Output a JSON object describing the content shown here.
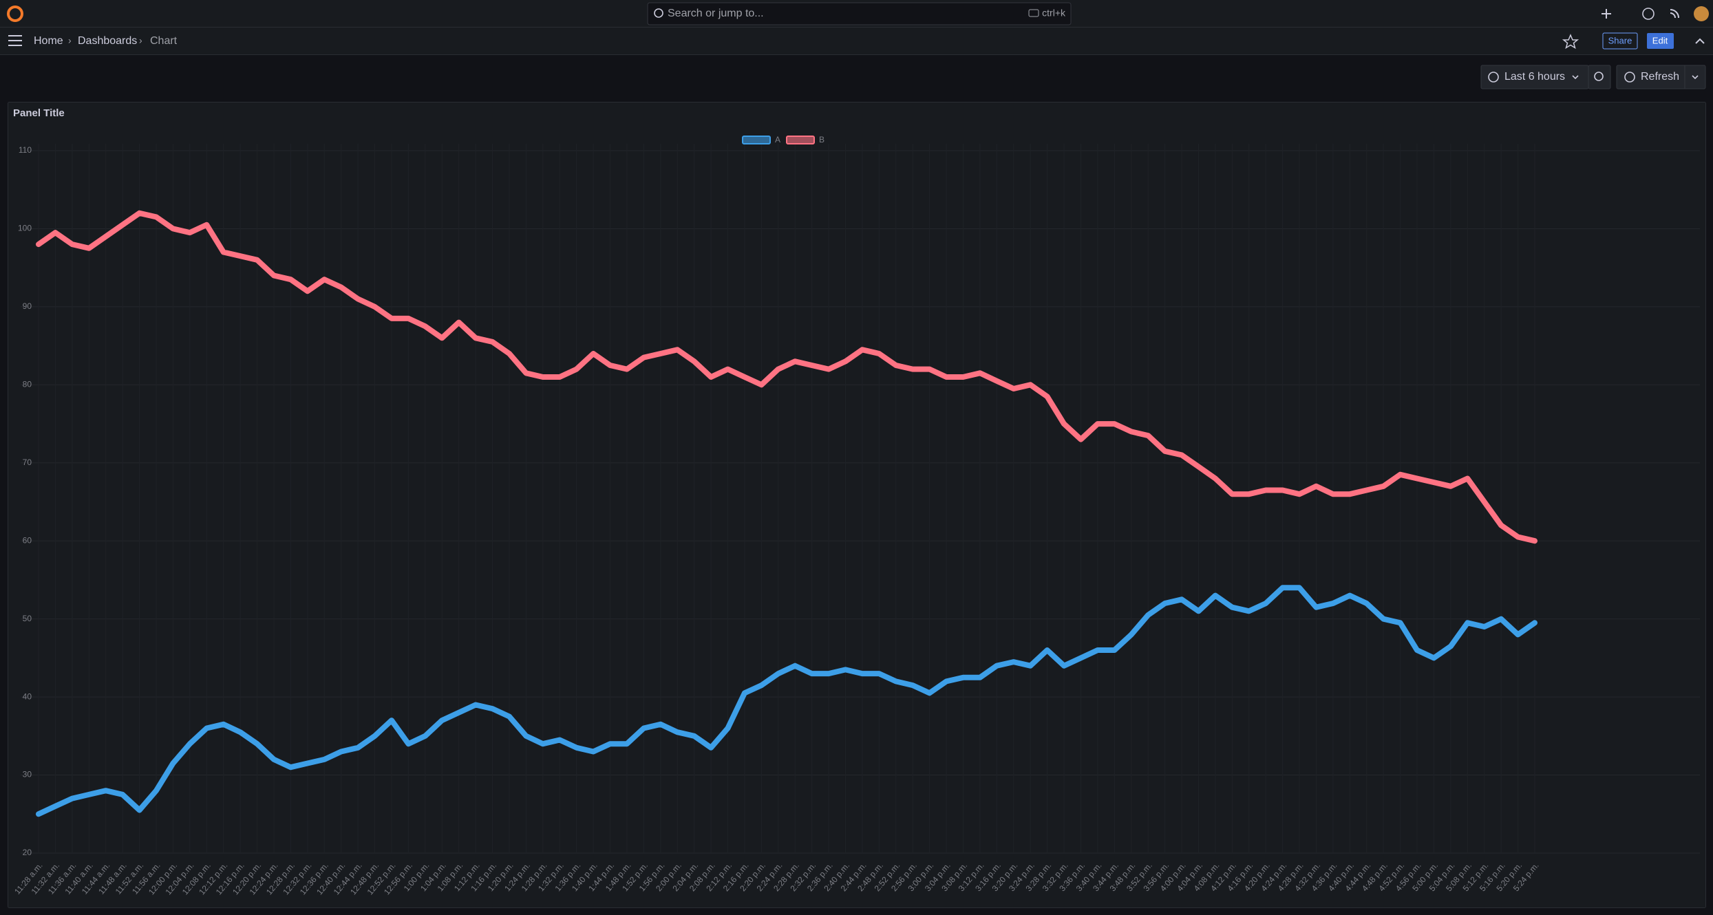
{
  "top_bar": {
    "search_placeholder": "Search or jump to...",
    "shortcut": "ctrl+k"
  },
  "breadcrumbs": [
    "Home",
    "Dashboards",
    "Chart"
  ],
  "actions": {
    "share": "Share",
    "edit": "Edit"
  },
  "toolbar": {
    "time_range": "Last 6 hours",
    "refresh": "Refresh"
  },
  "chart_data": {
    "type": "line",
    "title": "Panel Title",
    "x": [
      "11:28 a.m.",
      "11:32 a.m.",
      "11:36 a.m.",
      "11:40 a.m.",
      "11:44 a.m.",
      "11:48 a.m.",
      "11:52 a.m.",
      "11:56 a.m.",
      "12:00 p.m.",
      "12:04 p.m.",
      "12:08 p.m.",
      "12:12 p.m.",
      "12:16 p.m.",
      "12:20 p.m.",
      "12:24 p.m.",
      "12:28 p.m.",
      "12:32 p.m.",
      "12:36 p.m.",
      "12:40 p.m.",
      "12:44 p.m.",
      "12:48 p.m.",
      "12:52 p.m.",
      "12:56 p.m.",
      "1:00 p.m.",
      "1:04 p.m.",
      "1:08 p.m.",
      "1:12 p.m.",
      "1:16 p.m.",
      "1:20 p.m.",
      "1:24 p.m.",
      "1:28 p.m.",
      "1:32 p.m.",
      "1:36 p.m.",
      "1:40 p.m.",
      "1:44 p.m.",
      "1:48 p.m.",
      "1:52 p.m.",
      "1:56 p.m.",
      "2:00 p.m.",
      "2:04 p.m.",
      "2:08 p.m.",
      "2:12 p.m.",
      "2:16 p.m.",
      "2:20 p.m.",
      "2:24 p.m.",
      "2:28 p.m.",
      "2:32 p.m.",
      "2:36 p.m.",
      "2:40 p.m.",
      "2:44 p.m.",
      "2:48 p.m.",
      "2:52 p.m.",
      "2:56 p.m.",
      "3:00 p.m.",
      "3:04 p.m.",
      "3:08 p.m.",
      "3:12 p.m.",
      "3:16 p.m.",
      "3:20 p.m.",
      "3:24 p.m.",
      "3:28 p.m.",
      "3:32 p.m.",
      "3:36 p.m.",
      "3:40 p.m.",
      "3:44 p.m.",
      "3:48 p.m.",
      "3:52 p.m.",
      "3:56 p.m.",
      "4:00 p.m.",
      "4:04 p.m.",
      "4:08 p.m.",
      "4:12 p.m.",
      "4:16 p.m.",
      "4:20 p.m.",
      "4:24 p.m.",
      "4:28 p.m.",
      "4:32 p.m.",
      "4:36 p.m.",
      "4:40 p.m.",
      "4:44 p.m.",
      "4:48 p.m.",
      "4:52 p.m.",
      "4:56 p.m.",
      "5:00 p.m.",
      "5:04 p.m.",
      "5:08 p.m.",
      "5:12 p.m.",
      "5:16 p.m.",
      "5:20 p.m.",
      "5:24 p.m."
    ],
    "series": [
      {
        "name": "A",
        "color": "#3d9fe8",
        "values": [
          25,
          26,
          27,
          27.5,
          28,
          27.5,
          25.5,
          28,
          31.5,
          34,
          36,
          36.5,
          35.5,
          34,
          32,
          31,
          31.5,
          32,
          33,
          33.5,
          35,
          37,
          34,
          35,
          37,
          38,
          39,
          38.5,
          37.5,
          35,
          34,
          34.5,
          33.5,
          33,
          34,
          34,
          36,
          36.5,
          35.5,
          35,
          33.5,
          36,
          40.5,
          41.5,
          43,
          44,
          43,
          43,
          43.5,
          43,
          43,
          42,
          41.5,
          40.5,
          42,
          42.5,
          42.5,
          44,
          44.5,
          44,
          46,
          44,
          45,
          46,
          46,
          48,
          50.5,
          52,
          52.5,
          51,
          53,
          51.5,
          51,
          52,
          54,
          54,
          51.5,
          52,
          53,
          52,
          50,
          49.5,
          46,
          45,
          46.5,
          49.5,
          49,
          50,
          48,
          49.5
        ]
      },
      {
        "name": "B",
        "color": "#ff7383",
        "values": [
          98,
          99.5,
          98,
          97.5,
          99,
          100.5,
          102,
          101.5,
          100,
          99.5,
          100.5,
          97,
          96.5,
          96,
          94,
          93.5,
          92,
          93.5,
          92.5,
          91,
          90,
          88.5,
          88.5,
          87.5,
          86,
          88,
          86,
          85.5,
          84,
          81.5,
          81,
          81,
          82,
          84,
          82.5,
          82,
          83.5,
          84,
          84.5,
          83,
          81,
          82,
          81,
          80,
          82,
          83,
          82.5,
          82,
          83,
          84.5,
          84,
          82.5,
          82,
          82,
          81,
          81,
          81.5,
          80.5,
          79.5,
          80,
          78.5,
          75,
          73,
          75,
          75,
          74,
          73.5,
          71.5,
          71,
          69.5,
          68,
          66,
          66,
          66.5,
          66.5,
          66,
          67,
          66,
          66,
          66.5,
          67,
          68.5,
          68,
          67.5,
          67,
          68,
          65,
          62,
          60.5,
          60
        ]
      }
    ],
    "ylim": [
      20,
      110
    ],
    "yticks": [
      20,
      30,
      40,
      50,
      60,
      70,
      80,
      90,
      100,
      110
    ],
    "grid": true,
    "legend": "top"
  }
}
